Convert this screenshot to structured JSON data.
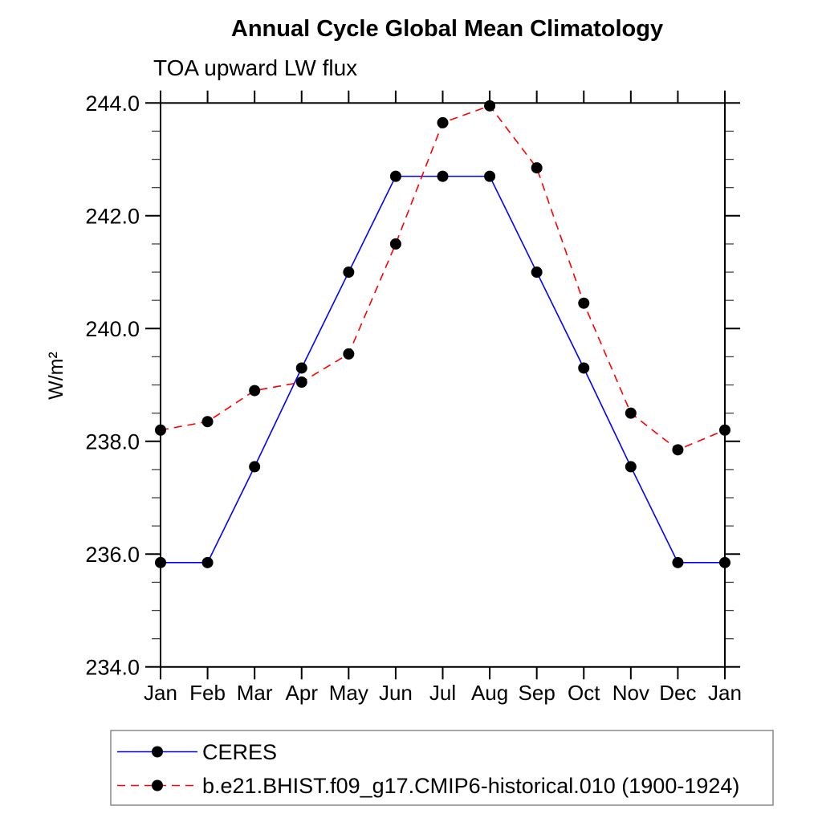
{
  "chart_data": {
    "type": "line",
    "title": "Annual Cycle Global Mean Climatology",
    "subtitle": "TOA upward LW flux",
    "ylabel": "W/m²",
    "xlabel": "",
    "categories": [
      "Jan",
      "Feb",
      "Mar",
      "Apr",
      "May",
      "Jun",
      "Jul",
      "Aug",
      "Sep",
      "Oct",
      "Nov",
      "Dec",
      "Jan"
    ],
    "series": [
      {
        "name": "CERES",
        "color": "#0000ff",
        "line_style": "solid",
        "marker": "filled-circle",
        "marker_color": "#000000",
        "values": [
          235.85,
          235.85,
          237.55,
          239.3,
          241.0,
          242.7,
          242.7,
          242.7,
          241.0,
          239.3,
          237.55,
          235.85,
          235.85
        ]
      },
      {
        "name": "b.e21.BHIST.f09_g17.CMIP6-historical.010 (1900-1924)",
        "color": "#ff0000",
        "line_style": "dashed",
        "marker": "filled-circle",
        "marker_color": "#000000",
        "values": [
          238.2,
          238.35,
          238.9,
          239.05,
          239.55,
          241.5,
          243.65,
          243.95,
          242.85,
          240.45,
          238.5,
          237.85,
          238.2
        ]
      }
    ],
    "ylim": [
      234.0,
      244.0
    ],
    "ytick_major_step": 2.0,
    "ytick_minor_step": 0.5,
    "ytick_labels": [
      "234.0",
      "236.0",
      "238.0",
      "240.0",
      "242.0",
      "244.0"
    ],
    "grid": false,
    "frame": "box-with-outward-ticks",
    "legend_position": "bottom-left-box",
    "axis_color": "#000000",
    "background_color": "#ffffff"
  }
}
